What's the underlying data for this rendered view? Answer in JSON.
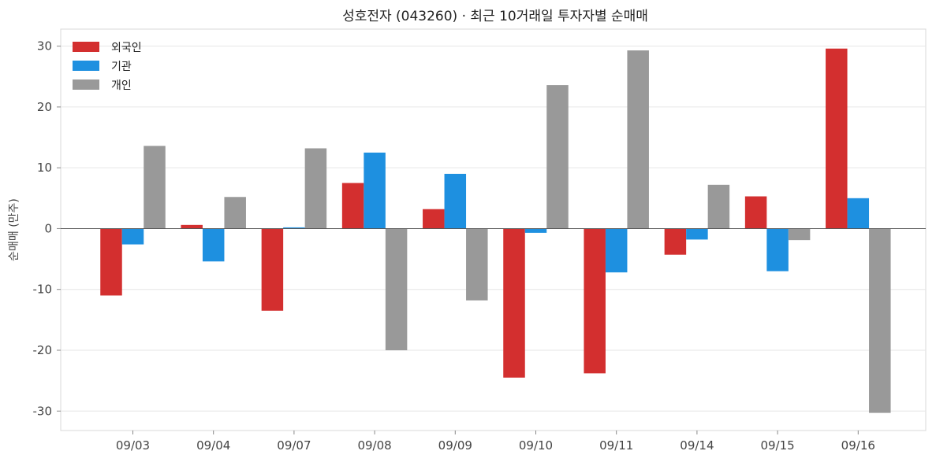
{
  "chart_data": {
    "type": "bar",
    "title": "성호전자 (043260) · 최근 10거래일 투자자별 순매매",
    "xlabel": "",
    "ylabel": "순매매 (만주)",
    "categories": [
      "09/03",
      "09/04",
      "09/07",
      "09/08",
      "09/09",
      "09/10",
      "09/11",
      "09/14",
      "09/15",
      "09/16"
    ],
    "series": [
      {
        "name": "외국인",
        "color": "#d32f2f",
        "values": [
          -11.0,
          0.6,
          -13.5,
          7.5,
          3.2,
          -24.5,
          -23.8,
          -4.3,
          5.3,
          29.6
        ]
      },
      {
        "name": "기관",
        "color": "#1e90e0",
        "values": [
          -2.6,
          -5.4,
          0.2,
          12.5,
          9.0,
          -0.7,
          -7.2,
          -1.8,
          -7.0,
          5.0
        ]
      },
      {
        "name": "개인",
        "color": "#999999",
        "values": [
          13.6,
          5.2,
          13.2,
          -20.0,
          -11.8,
          23.6,
          29.3,
          7.2,
          -1.9,
          -30.3
        ]
      }
    ],
    "ylim": [
      -33.2,
      32.8
    ],
    "yticks": [
      -30,
      -20,
      -10,
      0,
      10,
      20,
      30
    ],
    "grid": true,
    "legend_position": "top-left"
  }
}
